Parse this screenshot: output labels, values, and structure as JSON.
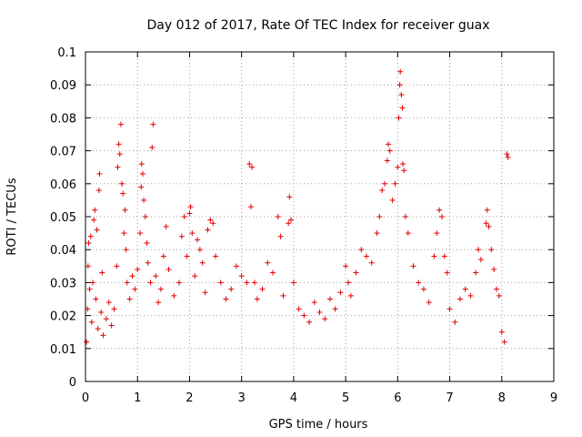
{
  "chart_data": {
    "type": "scatter",
    "title": "Day 012 of 2017, Rate Of TEC Index for receiver guax",
    "xlabel": "GPS time / hours",
    "ylabel": "ROTI / TECUs",
    "xlim": [
      0,
      9
    ],
    "ylim": [
      0,
      0.1
    ],
    "xticks": [
      "0",
      "1",
      "2",
      "3",
      "4",
      "5",
      "6",
      "7",
      "8",
      "9"
    ],
    "yticks": [
      "0",
      "0.01",
      "0.02",
      "0.03",
      "0.04",
      "0.05",
      "0.06",
      "0.07",
      "0.08",
      "0.09",
      "0.1"
    ],
    "grid": true,
    "marker": "+",
    "color": "#e00000",
    "series": [
      {
        "points": [
          [
            0.02,
            0.012
          ],
          [
            0.04,
            0.022
          ],
          [
            0.05,
            0.035
          ],
          [
            0.06,
            0.042
          ],
          [
            0.08,
            0.028
          ],
          [
            0.1,
            0.044
          ],
          [
            0.12,
            0.018
          ],
          [
            0.14,
            0.03
          ],
          [
            0.16,
            0.049
          ],
          [
            0.18,
            0.052
          ],
          [
            0.2,
            0.025
          ],
          [
            0.22,
            0.046
          ],
          [
            0.24,
            0.016
          ],
          [
            0.26,
            0.058
          ],
          [
            0.27,
            0.063
          ],
          [
            0.3,
            0.021
          ],
          [
            0.32,
            0.033
          ],
          [
            0.34,
            0.014
          ],
          [
            0.4,
            0.019
          ],
          [
            0.45,
            0.024
          ],
          [
            0.5,
            0.017
          ],
          [
            0.55,
            0.022
          ],
          [
            0.6,
            0.035
          ],
          [
            0.62,
            0.065
          ],
          [
            0.64,
            0.072
          ],
          [
            0.66,
            0.069
          ],
          [
            0.68,
            0.078
          ],
          [
            0.7,
            0.06
          ],
          [
            0.72,
            0.057
          ],
          [
            0.74,
            0.045
          ],
          [
            0.76,
            0.052
          ],
          [
            0.78,
            0.04
          ],
          [
            0.8,
            0.03
          ],
          [
            0.85,
            0.025
          ],
          [
            0.9,
            0.032
          ],
          [
            0.95,
            0.028
          ],
          [
            1.0,
            0.034
          ],
          [
            1.05,
            0.045
          ],
          [
            1.07,
            0.059
          ],
          [
            1.08,
            0.066
          ],
          [
            1.1,
            0.063
          ],
          [
            1.12,
            0.055
          ],
          [
            1.15,
            0.05
          ],
          [
            1.18,
            0.042
          ],
          [
            1.2,
            0.036
          ],
          [
            1.25,
            0.03
          ],
          [
            1.28,
            0.071
          ],
          [
            1.3,
            0.078
          ],
          [
            1.35,
            0.032
          ],
          [
            1.4,
            0.024
          ],
          [
            1.45,
            0.028
          ],
          [
            1.5,
            0.038
          ],
          [
            1.55,
            0.047
          ],
          [
            1.6,
            0.034
          ],
          [
            1.7,
            0.026
          ],
          [
            1.8,
            0.03
          ],
          [
            1.85,
            0.044
          ],
          [
            1.9,
            0.05
          ],
          [
            1.95,
            0.038
          ],
          [
            2.0,
            0.051
          ],
          [
            2.02,
            0.053
          ],
          [
            2.05,
            0.045
          ],
          [
            2.1,
            0.032
          ],
          [
            2.15,
            0.043
          ],
          [
            2.2,
            0.04
          ],
          [
            2.25,
            0.036
          ],
          [
            2.3,
            0.027
          ],
          [
            2.35,
            0.046
          ],
          [
            2.4,
            0.049
          ],
          [
            2.45,
            0.048
          ],
          [
            2.5,
            0.038
          ],
          [
            2.6,
            0.03
          ],
          [
            2.7,
            0.025
          ],
          [
            2.8,
            0.028
          ],
          [
            2.9,
            0.035
          ],
          [
            3.0,
            0.032
          ],
          [
            3.1,
            0.03
          ],
          [
            3.15,
            0.066
          ],
          [
            3.18,
            0.053
          ],
          [
            3.2,
            0.065
          ],
          [
            3.25,
            0.03
          ],
          [
            3.3,
            0.025
          ],
          [
            3.4,
            0.028
          ],
          [
            3.5,
            0.036
          ],
          [
            3.6,
            0.033
          ],
          [
            3.7,
            0.05
          ],
          [
            3.75,
            0.044
          ],
          [
            3.8,
            0.026
          ],
          [
            3.9,
            0.048
          ],
          [
            3.92,
            0.056
          ],
          [
            3.95,
            0.049
          ],
          [
            4.0,
            0.03
          ],
          [
            4.1,
            0.022
          ],
          [
            4.2,
            0.02
          ],
          [
            4.3,
            0.018
          ],
          [
            4.4,
            0.024
          ],
          [
            4.5,
            0.021
          ],
          [
            4.6,
            0.019
          ],
          [
            4.7,
            0.025
          ],
          [
            4.8,
            0.022
          ],
          [
            4.9,
            0.027
          ],
          [
            5.0,
            0.035
          ],
          [
            5.05,
            0.03
          ],
          [
            5.1,
            0.026
          ],
          [
            5.2,
            0.033
          ],
          [
            5.3,
            0.04
          ],
          [
            5.4,
            0.038
          ],
          [
            5.5,
            0.036
          ],
          [
            5.6,
            0.045
          ],
          [
            5.65,
            0.05
          ],
          [
            5.7,
            0.058
          ],
          [
            5.75,
            0.06
          ],
          [
            5.8,
            0.067
          ],
          [
            5.82,
            0.072
          ],
          [
            5.85,
            0.07
          ],
          [
            5.9,
            0.055
          ],
          [
            5.95,
            0.06
          ],
          [
            6.0,
            0.065
          ],
          [
            6.02,
            0.08
          ],
          [
            6.04,
            0.09
          ],
          [
            6.05,
            0.094
          ],
          [
            6.07,
            0.087
          ],
          [
            6.09,
            0.083
          ],
          [
            6.1,
            0.066
          ],
          [
            6.12,
            0.064
          ],
          [
            6.15,
            0.05
          ],
          [
            6.2,
            0.045
          ],
          [
            6.3,
            0.035
          ],
          [
            6.4,
            0.03
          ],
          [
            6.5,
            0.028
          ],
          [
            6.6,
            0.024
          ],
          [
            6.7,
            0.038
          ],
          [
            6.75,
            0.045
          ],
          [
            6.8,
            0.052
          ],
          [
            6.85,
            0.05
          ],
          [
            6.9,
            0.038
          ],
          [
            6.95,
            0.033
          ],
          [
            7.0,
            0.022
          ],
          [
            7.1,
            0.018
          ],
          [
            7.2,
            0.025
          ],
          [
            7.3,
            0.028
          ],
          [
            7.4,
            0.026
          ],
          [
            7.5,
            0.033
          ],
          [
            7.55,
            0.04
          ],
          [
            7.6,
            0.037
          ],
          [
            7.7,
            0.048
          ],
          [
            7.72,
            0.052
          ],
          [
            7.75,
            0.047
          ],
          [
            7.8,
            0.04
          ],
          [
            7.85,
            0.034
          ],
          [
            7.9,
            0.028
          ],
          [
            7.95,
            0.026
          ],
          [
            8.0,
            0.015
          ],
          [
            8.05,
            0.012
          ],
          [
            8.1,
            0.069
          ],
          [
            8.12,
            0.068
          ]
        ]
      }
    ]
  }
}
